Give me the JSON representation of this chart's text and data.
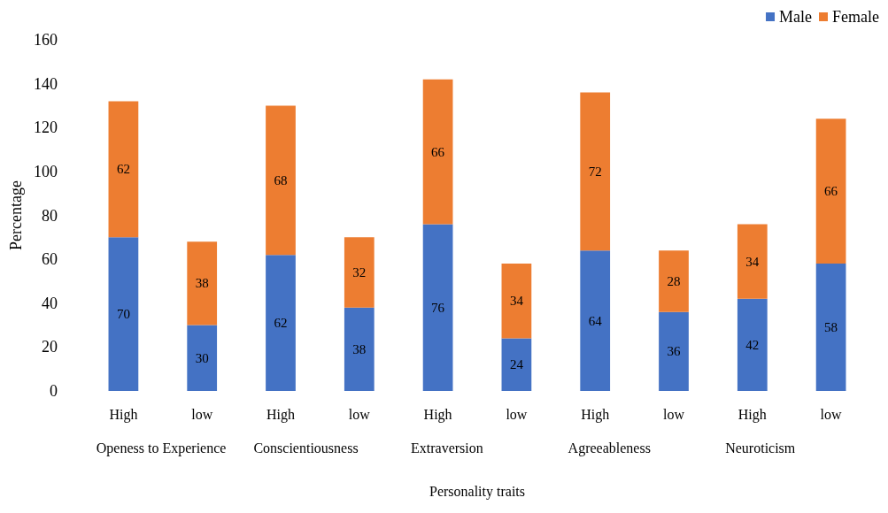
{
  "chart_data": {
    "type": "bar",
    "stacked": true,
    "xlabel": "Personality traits",
    "ylabel": "Percentage",
    "categories": [
      "High",
      "low",
      "High",
      "low",
      "High",
      "low",
      "High",
      "low",
      "High",
      "low"
    ],
    "annotations": [
      "Openess to Experience",
      "Conscientiousness",
      "Extraversion",
      "Agreeableness",
      "Neuroticism"
    ],
    "series": [
      {
        "name": "Male",
        "color": "#4472c4",
        "values": [
          70,
          30,
          62,
          38,
          76,
          24,
          64,
          36,
          42,
          58
        ]
      },
      {
        "name": "Female",
        "color": "#ed7d31",
        "values": [
          62,
          38,
          68,
          32,
          66,
          34,
          72,
          28,
          34,
          66
        ]
      }
    ],
    "ylim": [
      0,
      160
    ],
    "yticks": [
      0,
      20,
      40,
      60,
      80,
      100,
      120,
      140,
      160
    ],
    "grid": false,
    "legend": "top right",
    "data_labels": true
  }
}
